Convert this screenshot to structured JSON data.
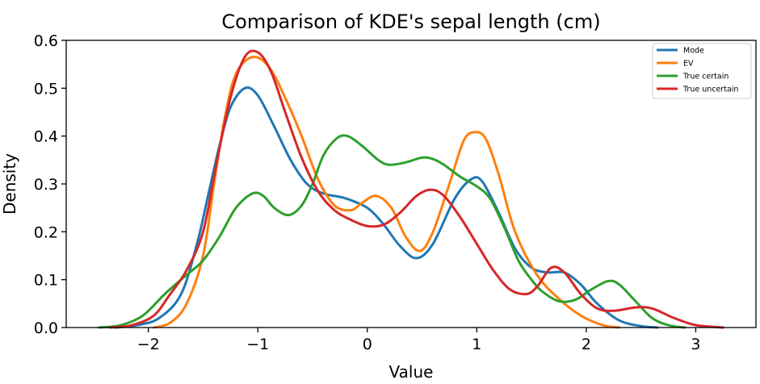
{
  "chart_data": {
    "type": "line",
    "title": "Comparison of KDE's sepal length (cm)",
    "xlabel": "Value",
    "ylabel": "Density",
    "xlim": [
      -2.75,
      3.55
    ],
    "ylim": [
      0,
      0.6
    ],
    "xticks": [
      -2,
      -1,
      0,
      1,
      2,
      3
    ],
    "xtick_labels": [
      "−2",
      "−1",
      "0",
      "1",
      "2",
      "3"
    ],
    "yticks": [
      0.0,
      0.1,
      0.2,
      0.3,
      0.4,
      0.5,
      0.6
    ],
    "ytick_labels": [
      "0.0",
      "0.1",
      "0.2",
      "0.3",
      "0.4",
      "0.5",
      "0.6"
    ],
    "grid": false,
    "legend_position": "top-right",
    "series": [
      {
        "name": "Mode",
        "color": "#1f77b4",
        "points": [
          [
            -2.3,
            0.0
          ],
          [
            -2.1,
            0.005
          ],
          [
            -1.9,
            0.02
          ],
          [
            -1.7,
            0.07
          ],
          [
            -1.55,
            0.18
          ],
          [
            -1.45,
            0.28
          ],
          [
            -1.35,
            0.38
          ],
          [
            -1.25,
            0.46
          ],
          [
            -1.12,
            0.5
          ],
          [
            -1.0,
            0.485
          ],
          [
            -0.85,
            0.42
          ],
          [
            -0.7,
            0.35
          ],
          [
            -0.55,
            0.3
          ],
          [
            -0.4,
            0.28
          ],
          [
            -0.2,
            0.27
          ],
          [
            0.0,
            0.25
          ],
          [
            0.15,
            0.215
          ],
          [
            0.3,
            0.17
          ],
          [
            0.45,
            0.145
          ],
          [
            0.6,
            0.175
          ],
          [
            0.8,
            0.27
          ],
          [
            0.95,
            0.31
          ],
          [
            1.05,
            0.305
          ],
          [
            1.2,
            0.24
          ],
          [
            1.35,
            0.165
          ],
          [
            1.5,
            0.125
          ],
          [
            1.65,
            0.115
          ],
          [
            1.8,
            0.115
          ],
          [
            1.95,
            0.09
          ],
          [
            2.1,
            0.05
          ],
          [
            2.3,
            0.015
          ],
          [
            2.5,
            0.003
          ],
          [
            2.65,
            0.0
          ]
        ]
      },
      {
        "name": "EV",
        "color": "#ff7f0e",
        "points": [
          [
            -1.95,
            0.0
          ],
          [
            -1.8,
            0.01
          ],
          [
            -1.65,
            0.05
          ],
          [
            -1.5,
            0.15
          ],
          [
            -1.4,
            0.3
          ],
          [
            -1.3,
            0.44
          ],
          [
            -1.2,
            0.53
          ],
          [
            -1.05,
            0.565
          ],
          [
            -0.9,
            0.545
          ],
          [
            -0.75,
            0.48
          ],
          [
            -0.6,
            0.4
          ],
          [
            -0.45,
            0.31
          ],
          [
            -0.3,
            0.255
          ],
          [
            -0.15,
            0.245
          ],
          [
            -0.05,
            0.26
          ],
          [
            0.08,
            0.275
          ],
          [
            0.22,
            0.25
          ],
          [
            0.35,
            0.19
          ],
          [
            0.48,
            0.16
          ],
          [
            0.6,
            0.2
          ],
          [
            0.75,
            0.3
          ],
          [
            0.88,
            0.39
          ],
          [
            0.98,
            0.408
          ],
          [
            1.08,
            0.395
          ],
          [
            1.2,
            0.32
          ],
          [
            1.35,
            0.2
          ],
          [
            1.55,
            0.11
          ],
          [
            1.75,
            0.06
          ],
          [
            1.95,
            0.025
          ],
          [
            2.15,
            0.005
          ],
          [
            2.3,
            0.0
          ]
        ]
      },
      {
        "name": "True certain",
        "color": "#2ca02c",
        "points": [
          [
            -2.45,
            0.0
          ],
          [
            -2.25,
            0.005
          ],
          [
            -2.05,
            0.025
          ],
          [
            -1.85,
            0.07
          ],
          [
            -1.65,
            0.11
          ],
          [
            -1.5,
            0.14
          ],
          [
            -1.35,
            0.19
          ],
          [
            -1.2,
            0.25
          ],
          [
            -1.05,
            0.28
          ],
          [
            -0.95,
            0.275
          ],
          [
            -0.85,
            0.25
          ],
          [
            -0.72,
            0.235
          ],
          [
            -0.6,
            0.255
          ],
          [
            -0.5,
            0.3
          ],
          [
            -0.4,
            0.36
          ],
          [
            -0.28,
            0.395
          ],
          [
            -0.18,
            0.4
          ],
          [
            -0.05,
            0.38
          ],
          [
            0.1,
            0.35
          ],
          [
            0.2,
            0.34
          ],
          [
            0.35,
            0.345
          ],
          [
            0.5,
            0.355
          ],
          [
            0.6,
            0.352
          ],
          [
            0.7,
            0.34
          ],
          [
            0.85,
            0.315
          ],
          [
            1.0,
            0.295
          ],
          [
            1.12,
            0.27
          ],
          [
            1.25,
            0.21
          ],
          [
            1.38,
            0.14
          ],
          [
            1.5,
            0.1
          ],
          [
            1.6,
            0.075
          ],
          [
            1.75,
            0.055
          ],
          [
            1.9,
            0.058
          ],
          [
            2.05,
            0.08
          ],
          [
            2.2,
            0.097
          ],
          [
            2.3,
            0.09
          ],
          [
            2.45,
            0.055
          ],
          [
            2.6,
            0.02
          ],
          [
            2.75,
            0.005
          ],
          [
            2.9,
            0.0
          ]
        ]
      },
      {
        "name": "True uncertain",
        "color": "#d62728",
        "points": [
          [
            -2.35,
            0.0
          ],
          [
            -2.15,
            0.005
          ],
          [
            -1.95,
            0.025
          ],
          [
            -1.8,
            0.07
          ],
          [
            -1.65,
            0.12
          ],
          [
            -1.5,
            0.2
          ],
          [
            -1.38,
            0.34
          ],
          [
            -1.25,
            0.48
          ],
          [
            -1.12,
            0.565
          ],
          [
            -1.0,
            0.575
          ],
          [
            -0.88,
            0.535
          ],
          [
            -0.75,
            0.45
          ],
          [
            -0.6,
            0.355
          ],
          [
            -0.45,
            0.285
          ],
          [
            -0.3,
            0.245
          ],
          [
            -0.15,
            0.225
          ],
          [
            0.0,
            0.212
          ],
          [
            0.15,
            0.215
          ],
          [
            0.3,
            0.24
          ],
          [
            0.45,
            0.275
          ],
          [
            0.58,
            0.288
          ],
          [
            0.7,
            0.275
          ],
          [
            0.85,
            0.23
          ],
          [
            1.0,
            0.175
          ],
          [
            1.15,
            0.12
          ],
          [
            1.3,
            0.08
          ],
          [
            1.45,
            0.07
          ],
          [
            1.55,
            0.085
          ],
          [
            1.68,
            0.125
          ],
          [
            1.8,
            0.115
          ],
          [
            1.95,
            0.07
          ],
          [
            2.1,
            0.04
          ],
          [
            2.25,
            0.035
          ],
          [
            2.45,
            0.042
          ],
          [
            2.6,
            0.04
          ],
          [
            2.8,
            0.02
          ],
          [
            3.0,
            0.005
          ],
          [
            3.25,
            0.0
          ]
        ]
      }
    ]
  }
}
